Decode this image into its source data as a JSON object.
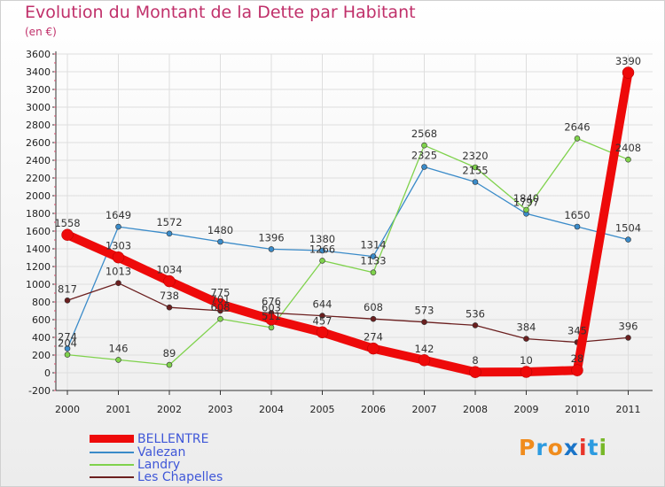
{
  "title": "Evolution du Montant de la Dette par Habitant",
  "subtitle": "(en €)",
  "logo": {
    "letters": [
      "P",
      "r",
      "o",
      "x",
      "i",
      "t",
      "i"
    ],
    "colors": [
      "#f08c1d",
      "#2d9be0",
      "#f08c1d",
      "#1a74c8",
      "#e8352a",
      "#2d9be0",
      "#78b829"
    ]
  },
  "chart_data": {
    "type": "line",
    "categories": [
      "2000",
      "2001",
      "2002",
      "2003",
      "2004",
      "2005",
      "2006",
      "2007",
      "2008",
      "2009",
      "2010",
      "2011"
    ],
    "ylim": [
      -200,
      3600
    ],
    "yticks": [
      -200,
      0,
      200,
      400,
      600,
      800,
      1000,
      1200,
      1400,
      1600,
      1800,
      2000,
      2200,
      2400,
      2600,
      2800,
      3000,
      3200,
      3400,
      3600
    ],
    "grid": true,
    "legend_position": "bottom-left",
    "series": [
      {
        "name": "BELLENTRE",
        "color": "#ee0a0a",
        "values": [
          1558,
          1303,
          1034,
          775,
          603,
          457,
          274,
          142,
          8,
          10,
          28,
          3390
        ],
        "labels": [
          "1558",
          "1303",
          "1034",
          "775",
          "603",
          "457",
          "274",
          "142",
          "8",
          "10",
          "28",
          "3390"
        ]
      },
      {
        "name": "Valezan",
        "color": "#3a8bc9",
        "values": [
          274,
          1649,
          1572,
          1480,
          1396,
          1380,
          1314,
          2325,
          2155,
          1797,
          1650,
          1504
        ],
        "labels": [
          "274",
          "1649",
          "1572",
          "1480",
          "1396",
          "1380",
          "1314",
          "2325",
          "2155",
          "1797",
          "1650",
          "1504"
        ]
      },
      {
        "name": "Landry",
        "color": "#7fd24c",
        "values": [
          204,
          146,
          89,
          608,
          511,
          1266,
          1133,
          2568,
          2320,
          1840,
          2646,
          2408
        ],
        "labels": [
          "204",
          "146",
          "89",
          "608",
          "511",
          "1266",
          "1133",
          "2568",
          "2320",
          "1840",
          "2646",
          "2408"
        ]
      },
      {
        "name": "Les Chapelles",
        "color": "#6b1f1f",
        "values": [
          817,
          1013,
          738,
          701,
          676,
          644,
          608,
          573,
          536,
          384,
          345,
          396
        ],
        "labels": [
          "817",
          "1013",
          "738",
          "701",
          "676",
          "644",
          "608",
          "573",
          "536",
          "384",
          "345",
          "396"
        ]
      }
    ]
  }
}
